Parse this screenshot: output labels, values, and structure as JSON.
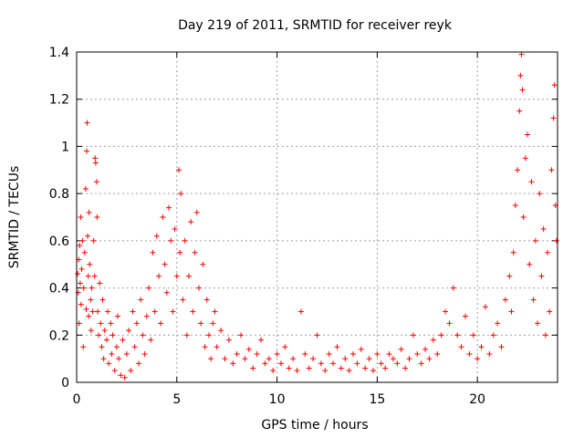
{
  "chart_data": {
    "type": "scatter",
    "title": "Day 219 of 2011, SRMTID for receiver reyk",
    "xlabel": "GPS time / hours",
    "ylabel": "SRMTID / TECUs",
    "xlim": [
      0,
      24
    ],
    "ylim": [
      0,
      1.4
    ],
    "x_ticks": [
      "0",
      "5",
      "10",
      "15",
      "20"
    ],
    "y_ticks": [
      "0",
      "0.2",
      "0.4",
      "0.6",
      "0.8",
      "1",
      "1.2",
      "1.4"
    ],
    "grid": true,
    "legend": "none",
    "marker": "plus",
    "color": "#ff0000",
    "series": [
      {
        "points": [
          [
            0.05,
            0.46
          ],
          [
            0.08,
            0.38
          ],
          [
            0.1,
            0.52
          ],
          [
            0.12,
            0.25
          ],
          [
            0.15,
            0.58
          ],
          [
            0.18,
            0.42
          ],
          [
            0.2,
            0.7
          ],
          [
            0.22,
            0.33
          ],
          [
            0.25,
            0.48
          ],
          [
            0.3,
            0.6
          ],
          [
            0.33,
            0.15
          ],
          [
            0.35,
            0.4
          ],
          [
            0.4,
            0.55
          ],
          [
            0.45,
            0.82
          ],
          [
            0.48,
            0.31
          ],
          [
            0.5,
            0.98
          ],
          [
            0.52,
            1.1
          ],
          [
            0.55,
            0.62
          ],
          [
            0.58,
            0.45
          ],
          [
            0.6,
            0.28
          ],
          [
            0.62,
            0.72
          ],
          [
            0.65,
            0.5
          ],
          [
            0.7,
            0.35
          ],
          [
            0.72,
            0.22
          ],
          [
            0.75,
            0.4
          ],
          [
            0.8,
            0.3
          ],
          [
            0.85,
            0.6
          ],
          [
            0.9,
            0.45
          ],
          [
            0.92,
            0.95
          ],
          [
            0.95,
            0.93
          ],
          [
            1.0,
            0.85
          ],
          [
            1.02,
            0.7
          ],
          [
            1.05,
            0.3
          ],
          [
            1.1,
            0.2
          ],
          [
            1.15,
            0.42
          ],
          [
            1.2,
            0.25
          ],
          [
            1.25,
            0.15
          ],
          [
            1.3,
            0.35
          ],
          [
            1.35,
            0.1
          ],
          [
            1.4,
            0.22
          ],
          [
            1.5,
            0.18
          ],
          [
            1.55,
            0.3
          ],
          [
            1.6,
            0.08
          ],
          [
            1.7,
            0.25
          ],
          [
            1.75,
            0.12
          ],
          [
            1.8,
            0.2
          ],
          [
            1.9,
            0.05
          ],
          [
            2.0,
            0.15
          ],
          [
            2.05,
            0.28
          ],
          [
            2.1,
            0.1
          ],
          [
            2.2,
            0.03
          ],
          [
            2.3,
            0.18
          ],
          [
            2.4,
            0.02
          ],
          [
            2.5,
            0.12
          ],
          [
            2.6,
            0.22
          ],
          [
            2.7,
            0.05
          ],
          [
            2.8,
            0.3
          ],
          [
            2.9,
            0.15
          ],
          [
            3.0,
            0.25
          ],
          [
            3.1,
            0.08
          ],
          [
            3.2,
            0.35
          ],
          [
            3.3,
            0.2
          ],
          [
            3.4,
            0.12
          ],
          [
            3.5,
            0.28
          ],
          [
            3.6,
            0.4
          ],
          [
            3.7,
            0.18
          ],
          [
            3.8,
            0.55
          ],
          [
            3.9,
            0.3
          ],
          [
            4.0,
            0.62
          ],
          [
            4.1,
            0.45
          ],
          [
            4.2,
            0.25
          ],
          [
            4.3,
            0.7
          ],
          [
            4.4,
            0.5
          ],
          [
            4.5,
            0.38
          ],
          [
            4.6,
            0.74
          ],
          [
            4.7,
            0.6
          ],
          [
            4.8,
            0.3
          ],
          [
            4.9,
            0.65
          ],
          [
            5.0,
            0.45
          ],
          [
            5.1,
            0.9
          ],
          [
            5.15,
            0.55
          ],
          [
            5.2,
            0.8
          ],
          [
            5.3,
            0.35
          ],
          [
            5.4,
            0.6
          ],
          [
            5.5,
            0.2
          ],
          [
            5.6,
            0.45
          ],
          [
            5.7,
            0.68
          ],
          [
            5.8,
            0.3
          ],
          [
            5.9,
            0.55
          ],
          [
            6.0,
            0.72
          ],
          [
            6.1,
            0.4
          ],
          [
            6.2,
            0.25
          ],
          [
            6.3,
            0.5
          ],
          [
            6.4,
            0.15
          ],
          [
            6.5,
            0.35
          ],
          [
            6.6,
            0.2
          ],
          [
            6.7,
            0.1
          ],
          [
            6.8,
            0.25
          ],
          [
            6.9,
            0.3
          ],
          [
            7.0,
            0.15
          ],
          [
            7.2,
            0.22
          ],
          [
            7.4,
            0.1
          ],
          [
            7.6,
            0.18
          ],
          [
            7.8,
            0.08
          ],
          [
            8.0,
            0.12
          ],
          [
            8.2,
            0.2
          ],
          [
            8.4,
            0.1
          ],
          [
            8.6,
            0.14
          ],
          [
            8.8,
            0.06
          ],
          [
            9.0,
            0.12
          ],
          [
            9.2,
            0.18
          ],
          [
            9.4,
            0.08
          ],
          [
            9.6,
            0.1
          ],
          [
            9.8,
            0.05
          ],
          [
            10.0,
            0.12
          ],
          [
            10.2,
            0.08
          ],
          [
            10.4,
            0.15
          ],
          [
            10.6,
            0.06
          ],
          [
            10.8,
            0.1
          ],
          [
            11.0,
            0.05
          ],
          [
            11.2,
            0.3
          ],
          [
            11.4,
            0.12
          ],
          [
            11.6,
            0.06
          ],
          [
            11.8,
            0.1
          ],
          [
            12.0,
            0.2
          ],
          [
            12.2,
            0.08
          ],
          [
            12.4,
            0.05
          ],
          [
            12.6,
            0.12
          ],
          [
            12.8,
            0.08
          ],
          [
            13.0,
            0.15
          ],
          [
            13.2,
            0.06
          ],
          [
            13.4,
            0.1
          ],
          [
            13.6,
            0.05
          ],
          [
            13.8,
            0.12
          ],
          [
            14.0,
            0.08
          ],
          [
            14.2,
            0.14
          ],
          [
            14.4,
            0.06
          ],
          [
            14.6,
            0.1
          ],
          [
            14.8,
            0.05
          ],
          [
            15.0,
            0.12
          ],
          [
            15.2,
            0.08
          ],
          [
            15.4,
            0.06
          ],
          [
            15.6,
            0.12
          ],
          [
            15.8,
            0.1
          ],
          [
            16.0,
            0.08
          ],
          [
            16.2,
            0.14
          ],
          [
            16.4,
            0.06
          ],
          [
            16.6,
            0.1
          ],
          [
            16.8,
            0.2
          ],
          [
            17.0,
            0.12
          ],
          [
            17.2,
            0.08
          ],
          [
            17.4,
            0.14
          ],
          [
            17.6,
            0.1
          ],
          [
            17.8,
            0.18
          ],
          [
            18.0,
            0.12
          ],
          [
            18.2,
            0.2
          ],
          [
            18.4,
            0.3
          ],
          [
            18.6,
            0.25
          ],
          [
            18.8,
            0.4
          ],
          [
            19.0,
            0.2
          ],
          [
            19.2,
            0.15
          ],
          [
            19.4,
            0.28
          ],
          [
            19.6,
            0.12
          ],
          [
            19.8,
            0.2
          ],
          [
            20.0,
            0.1
          ],
          [
            20.2,
            0.15
          ],
          [
            20.4,
            0.32
          ],
          [
            20.6,
            0.12
          ],
          [
            20.8,
            0.2
          ],
          [
            21.0,
            0.25
          ],
          [
            21.2,
            0.15
          ],
          [
            21.4,
            0.35
          ],
          [
            21.6,
            0.45
          ],
          [
            21.7,
            0.3
          ],
          [
            21.8,
            0.55
          ],
          [
            21.9,
            0.75
          ],
          [
            22.0,
            0.9
          ],
          [
            22.1,
            1.15
          ],
          [
            22.15,
            1.3
          ],
          [
            22.2,
            1.39
          ],
          [
            22.25,
            1.24
          ],
          [
            22.3,
            0.7
          ],
          [
            22.4,
            0.95
          ],
          [
            22.5,
            1.05
          ],
          [
            22.6,
            0.5
          ],
          [
            22.7,
            0.85
          ],
          [
            22.8,
            0.35
          ],
          [
            22.9,
            0.6
          ],
          [
            23.0,
            0.25
          ],
          [
            23.1,
            0.8
          ],
          [
            23.2,
            0.45
          ],
          [
            23.3,
            0.65
          ],
          [
            23.4,
            0.2
          ],
          [
            23.5,
            0.55
          ],
          [
            23.6,
            0.3
          ],
          [
            23.7,
            0.9
          ],
          [
            23.8,
            1.12
          ],
          [
            23.85,
            1.26
          ],
          [
            23.9,
            0.75
          ],
          [
            23.95,
            0.6
          ]
        ]
      }
    ]
  }
}
